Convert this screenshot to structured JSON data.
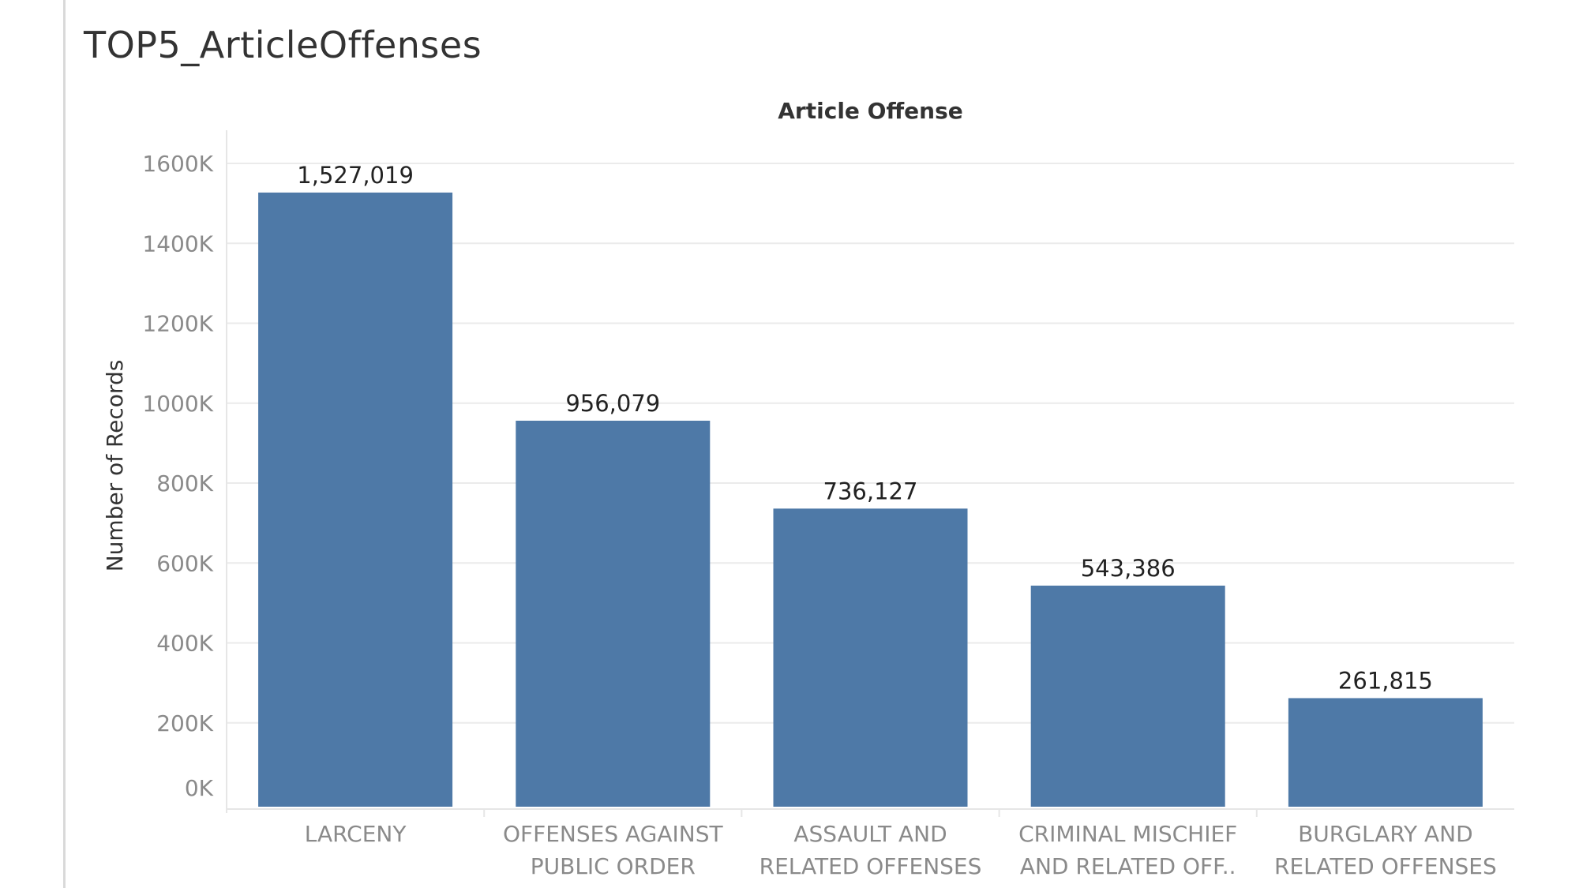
{
  "sheet": {
    "title": "TOP5_ArticleOffenses"
  },
  "chart_data": {
    "type": "bar",
    "header_label": "Article Offense",
    "ylabel": "Number of Records",
    "xlabel": "",
    "categories": [
      [
        "LARCENY"
      ],
      [
        "OFFENSES AGAINST",
        "PUBLIC ORDER"
      ],
      [
        "ASSAULT AND",
        "RELATED OFFENSES"
      ],
      [
        "CRIMINAL MISCHIEF",
        "AND RELATED OFF.."
      ],
      [
        "BURGLARY AND",
        "RELATED OFFENSES"
      ]
    ],
    "values": [
      1527019,
      956079,
      736127,
      543386,
      261815
    ],
    "data_labels": [
      "1,527,019",
      "956,079",
      "736,127",
      "543,386",
      "261,815"
    ],
    "ylim": [
      0,
      1600000
    ],
    "yticks": [
      0,
      200000,
      400000,
      600000,
      800000,
      1000000,
      1200000,
      1400000,
      1600000
    ],
    "ytick_labels": [
      "0K",
      "200K",
      "400K",
      "600K",
      "800K",
      "1000K",
      "1200K",
      "1400K",
      "1600K"
    ],
    "grid": true,
    "bar_color": "#4e79a7",
    "grid_color": "#ebebeb",
    "axis_color": "#e6e6e6"
  }
}
